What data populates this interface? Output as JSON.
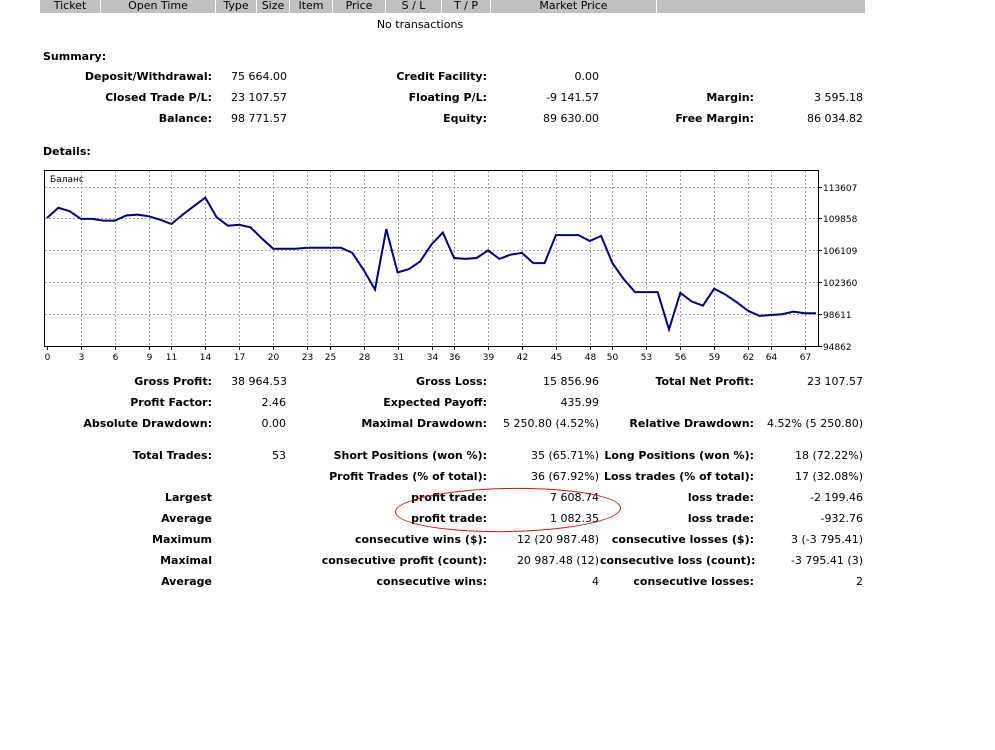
{
  "table_header": [
    "Ticket",
    "Open Time",
    "Type",
    "Size",
    "Item",
    "Price",
    "S / L",
    "T / P",
    "Market Price"
  ],
  "no_transactions": "No transactions",
  "summary": {
    "title": "Summary:",
    "deposit_label": "Deposit/Withdrawal:",
    "deposit_value": "75 664.00",
    "credit_label": "Credit Facility:",
    "credit_value": "0.00",
    "closed_label": "Closed Trade P/L:",
    "closed_value": "23 107.57",
    "floating_label": "Floating P/L:",
    "floating_value": "-9 141.57",
    "margin_label": "Margin:",
    "margin_value": "3 595.18",
    "balance_label": "Balance:",
    "balance_value": "98 771.57",
    "equity_label": "Equity:",
    "equity_value": "89 630.00",
    "free_margin_label": "Free Margin:",
    "free_margin_value": "86 034.82"
  },
  "details_title": "Details:",
  "chart_data": {
    "type": "line",
    "title": "Баланс",
    "color": "#000080",
    "x_ticks": [
      0,
      3,
      6,
      9,
      11,
      14,
      17,
      20,
      23,
      25,
      28,
      31,
      34,
      36,
      39,
      42,
      45,
      48,
      50,
      53,
      56,
      59,
      62,
      64,
      67
    ],
    "y_ticks": [
      113607,
      109858,
      106109,
      102360,
      98611,
      94862
    ],
    "ylim": [
      94862,
      113607
    ],
    "xlim": [
      0,
      68
    ],
    "x": [
      0,
      1,
      2,
      3,
      4,
      5,
      6,
      7,
      8,
      9,
      10,
      11,
      12,
      13,
      14,
      15,
      16,
      17,
      18,
      19,
      20,
      21,
      22,
      23,
      24,
      25,
      26,
      27,
      28,
      29,
      30,
      31,
      32,
      33,
      34,
      35,
      36,
      37,
      38,
      39,
      40,
      41,
      42,
      43,
      44,
      45,
      46,
      47,
      48,
      49,
      50,
      51,
      52,
      53,
      54,
      55,
      56,
      57,
      58,
      59,
      60,
      61,
      62,
      63,
      64,
      65,
      66,
      67,
      68
    ],
    "y": [
      109900,
      111100,
      110700,
      109800,
      109800,
      109600,
      109600,
      110200,
      110300,
      110100,
      109700,
      109200,
      110300,
      111300,
      112300,
      110000,
      109000,
      109100,
      108800,
      107500,
      106300,
      106300,
      106300,
      106400,
      106400,
      106400,
      106400,
      105800,
      103800,
      101500,
      108600,
      103500,
      103900,
      104800,
      106800,
      108200,
      105200,
      105100,
      105200,
      106100,
      105100,
      105600,
      105800,
      104600,
      104600,
      107900,
      107900,
      107900,
      107200,
      107800,
      104600,
      102700,
      101200,
      101200,
      101200,
      96800,
      101100,
      100100,
      99600,
      101600,
      100900,
      100000,
      99000,
      98400,
      98500,
      98600,
      98900,
      98700,
      98700
    ]
  },
  "stats": {
    "gross_profit_label": "Gross Profit:",
    "gross_profit_value": "38 964.53",
    "gross_loss_label": "Gross Loss:",
    "gross_loss_value": "15 856.96",
    "total_net_label": "Total Net Profit:",
    "total_net_value": "23 107.57",
    "profit_factor_label": "Profit Factor:",
    "profit_factor_value": "2.46",
    "expected_payoff_label": "Expected Payoff:",
    "expected_payoff_value": "435.99",
    "abs_dd_label": "Absolute Drawdown:",
    "abs_dd_value": "0.00",
    "max_dd_label": "Maximal Drawdown:",
    "max_dd_value": "5 250.80 (4.52%)",
    "rel_dd_label": "Relative Drawdown:",
    "rel_dd_value": "4.52% (5 250.80)",
    "total_trades_label": "Total Trades:",
    "total_trades_value": "53",
    "short_label": "Short Positions (won %):",
    "short_value": "35 (65.71%)",
    "long_label": "Long Positions (won %):",
    "long_value": "18 (72.22%)",
    "profit_trades_label": "Profit Trades (% of total):",
    "profit_trades_value": "36 (67.92%)",
    "loss_trades_label": "Loss trades (% of total):",
    "loss_trades_value": "17 (32.08%)",
    "largest_label": "Largest",
    "largest_profit_label": "profit trade:",
    "largest_profit_value": "7 608.74",
    "largest_loss_label": "loss trade:",
    "largest_loss_value": "-2 199.46",
    "average_label": "Average",
    "average_profit_label": "profit trade:",
    "average_profit_value": "1 082.35",
    "average_loss_label": "loss trade:",
    "average_loss_value": "-932.76",
    "maximum_label": "Maximum",
    "max_cons_wins_label": "consecutive wins ($):",
    "max_cons_wins_value": "12 (20 987.48)",
    "max_cons_losses_label": "consecutive losses ($):",
    "max_cons_losses_value": "3 (-3 795.41)",
    "maximal_label": "Maximal",
    "maximal_profit_label": "consecutive profit (count):",
    "maximal_profit_value": "20 987.48 (12)",
    "maximal_loss_label": "consecutive loss (count):",
    "maximal_loss_value": "-3 795.41 (3)",
    "average2_label": "Average",
    "avg_cons_wins_label": "consecutive wins:",
    "avg_cons_wins_value": "4",
    "avg_cons_losses_label": "consecutive losses:",
    "avg_cons_losses_value": "2"
  },
  "highlight_color": "#e01010"
}
